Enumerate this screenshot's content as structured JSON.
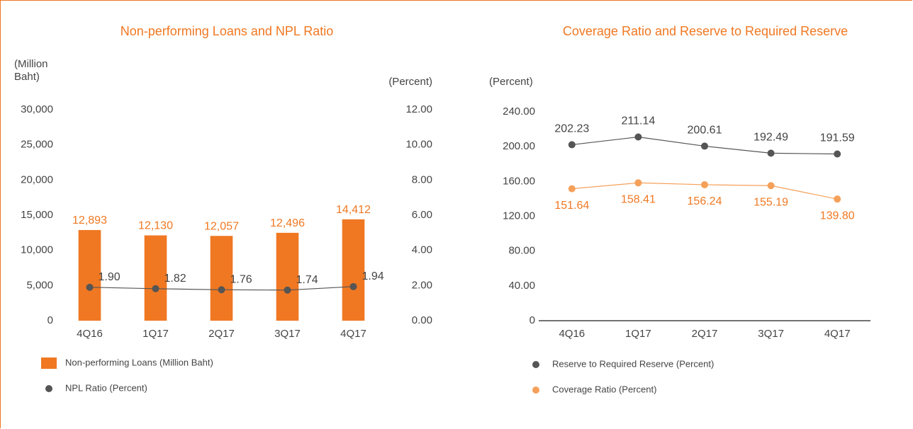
{
  "chart_data": [
    {
      "type": "combo",
      "title": "Non-performing Loans and NPL Ratio",
      "y_label": "(Million Baht)",
      "y2_label": "(Percent)",
      "categories": [
        "4Q16",
        "1Q17",
        "2Q17",
        "3Q17",
        "4Q17"
      ],
      "ylim": [
        0,
        30000
      ],
      "yticks": [
        0,
        {
          "value": 5000,
          "label": "5,000"
        },
        {
          "value": 10000,
          "label": "10,000"
        },
        {
          "value": 15000,
          "label": "15,000"
        },
        {
          "value": 20000,
          "label": "20,000"
        },
        {
          "value": 25000,
          "label": "25,000"
        },
        {
          "value": 30000,
          "label": "30,000"
        }
      ],
      "y2lim": [
        0,
        12
      ],
      "y2ticks": [
        {
          "value": 0,
          "label": "0.00"
        },
        {
          "value": 2,
          "label": "2.00"
        },
        {
          "value": 4,
          "label": "4.00"
        },
        {
          "value": 6,
          "label": "6.00"
        },
        {
          "value": 8,
          "label": "8.00"
        },
        {
          "value": 10,
          "label": "10.00"
        },
        {
          "value": 12,
          "label": "12.00"
        }
      ],
      "series": [
        {
          "name": "Non-performing Loans (Million Baht)",
          "type": "bar",
          "color": "#f07822",
          "values": [
            12893,
            12130,
            12057,
            12496,
            14412
          ],
          "value_labels": [
            "12,893",
            "12,130",
            "12,057",
            "12,496",
            "14,412"
          ]
        },
        {
          "name": "NPL Ratio (Percent)",
          "type": "line",
          "axis": "y2",
          "color": "#555555",
          "values": [
            1.9,
            1.82,
            1.76,
            1.74,
            1.94
          ],
          "value_labels": [
            "1.90",
            "1.82",
            "1.76",
            "1.74",
            "1.94"
          ]
        }
      ]
    },
    {
      "type": "line",
      "title": "Coverage Ratio and Reserve to Required Reserve",
      "y_label": "(Percent)",
      "categories": [
        "4Q16",
        "1Q17",
        "2Q17",
        "3Q17",
        "4Q17"
      ],
      "ylim": [
        0,
        240
      ],
      "yticks": [
        0,
        {
          "value": 40,
          "label": "40.00"
        },
        {
          "value": 80,
          "label": "80.00"
        },
        {
          "value": 120,
          "label": "120.00"
        },
        {
          "value": 160,
          "label": "160.00"
        },
        {
          "value": 200,
          "label": "200.00"
        },
        {
          "value": 240,
          "label": "240.00"
        }
      ],
      "series": [
        {
          "name": "Reserve to Required Reserve (Percent)",
          "type": "line",
          "color": "#555555",
          "values": [
            202.23,
            211.14,
            200.61,
            192.49,
            191.59
          ],
          "value_labels": [
            "202.23",
            "211.14",
            "200.61",
            "192.49",
            "191.59"
          ]
        },
        {
          "name": "Coverage Ratio (Percent)",
          "type": "line",
          "color": "#f5a05a",
          "values": [
            151.64,
            158.41,
            156.24,
            155.19,
            139.8
          ],
          "value_labels": [
            "151.64",
            "158.41",
            "156.24",
            "155.19",
            "139.80"
          ]
        }
      ]
    }
  ]
}
